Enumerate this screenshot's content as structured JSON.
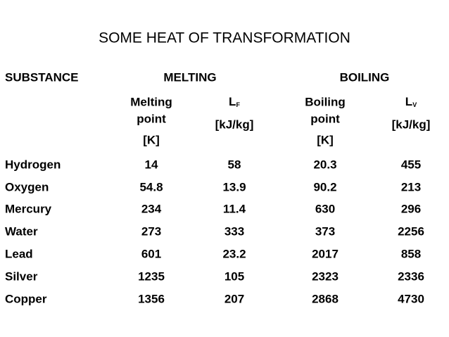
{
  "title": "SOME HEAT OF TRANSFORMATION",
  "header": {
    "substance": "SUBSTANCE",
    "melting": "MELTING",
    "boiling": "BOILING",
    "columns": [
      {
        "lines": [
          "Melting",
          "point",
          "[K]"
        ]
      },
      {
        "symbol": "L",
        "sub": "F",
        "unit": "[kJ/kg]"
      },
      {
        "lines": [
          "Boiling",
          "point",
          "[K]"
        ]
      },
      {
        "symbol": "L",
        "sub": "V",
        "unit": "[kJ/kg]"
      }
    ]
  },
  "table": {
    "rows": [
      [
        "Hydrogen",
        14,
        58,
        20.3,
        455
      ],
      [
        "Oxygen",
        54.8,
        13.9,
        90.2,
        213
      ],
      [
        "Mercury",
        234,
        11.4,
        630,
        296
      ],
      [
        "Water",
        273,
        333,
        373,
        2256
      ],
      [
        "Lead",
        601,
        23.2,
        2017,
        858
      ],
      [
        "Silver",
        1235,
        105,
        2323,
        2336
      ],
      [
        "Copper",
        1356,
        207,
        2868,
        4730
      ]
    ]
  }
}
